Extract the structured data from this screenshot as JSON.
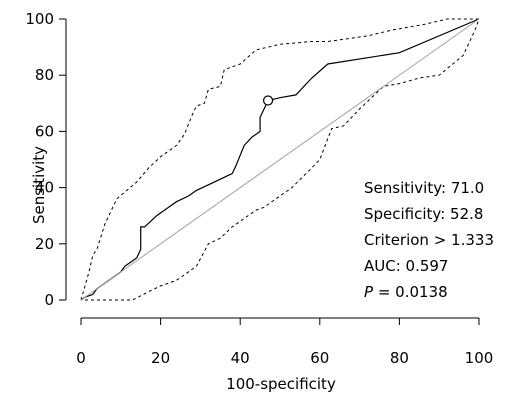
{
  "chart_data": {
    "type": "line",
    "xlabel": "100-specificity",
    "ylabel": "Sensitivity",
    "xlim": [
      0,
      100
    ],
    "ylim": [
      0,
      100
    ],
    "xticks": [
      0,
      20,
      40,
      60,
      80,
      100
    ],
    "yticks": [
      0,
      20,
      40,
      60,
      80,
      100
    ],
    "grid": false,
    "series": [
      {
        "role": "roc",
        "style": "solid",
        "x": [
          0,
          1,
          3,
          4,
          6,
          8,
          10,
          11,
          14,
          15,
          15,
          16,
          19,
          22,
          24,
          27,
          29,
          32,
          35,
          38,
          39,
          41,
          43,
          45,
          45,
          47,
          47,
          50,
          54,
          58,
          62,
          80,
          100
        ],
        "y": [
          0,
          1,
          2,
          4,
          6,
          8,
          10,
          12,
          15,
          18,
          26,
          26,
          30,
          33,
          35,
          37,
          39,
          41,
          43,
          45,
          48,
          55,
          58,
          60,
          65,
          71,
          71,
          72,
          73,
          79,
          84,
          88,
          100
        ]
      },
      {
        "role": "ci-upper",
        "style": "dashed",
        "x": [
          0,
          2,
          3,
          4,
          6,
          9,
          14,
          17,
          20,
          24,
          26,
          28,
          29,
          31,
          32,
          35,
          36,
          40,
          44,
          50,
          58,
          62,
          72,
          78,
          86,
          92,
          100
        ],
        "y": [
          0,
          10,
          16,
          18,
          27,
          36,
          42,
          47,
          51,
          55,
          59,
          66,
          69,
          70,
          75,
          76,
          82,
          84,
          89,
          91,
          92,
          92,
          94,
          96,
          98,
          100,
          100
        ]
      },
      {
        "role": "ci-lower",
        "style": "dashed",
        "x": [
          1,
          2,
          6,
          10,
          13,
          17,
          20,
          24,
          29,
          32,
          35,
          38,
          42,
          44,
          46,
          49,
          53,
          58,
          60,
          63,
          66,
          70,
          76,
          80,
          85,
          90,
          96,
          99,
          100
        ],
        "y": [
          0,
          0,
          0,
          0,
          0,
          3,
          5,
          7,
          12,
          20,
          22,
          26,
          30,
          32,
          33,
          36,
          40,
          47,
          50,
          61,
          62,
          68,
          76,
          77,
          79,
          80,
          87,
          96,
          100
        ]
      },
      {
        "role": "reference",
        "style": "solid-gray",
        "x": [
          0,
          100
        ],
        "y": [
          0,
          100
        ]
      }
    ],
    "marker": {
      "shape": "circle",
      "x": 47,
      "y": 71
    },
    "annotations": {
      "sensitivity": "Sensitivity: 71.0",
      "specificity": "Specificity: 52.8",
      "criterion": "Criterion > 1.333",
      "auc": "AUC: 0.597",
      "p_label": "P",
      "p_value": " = 0.0138"
    }
  }
}
